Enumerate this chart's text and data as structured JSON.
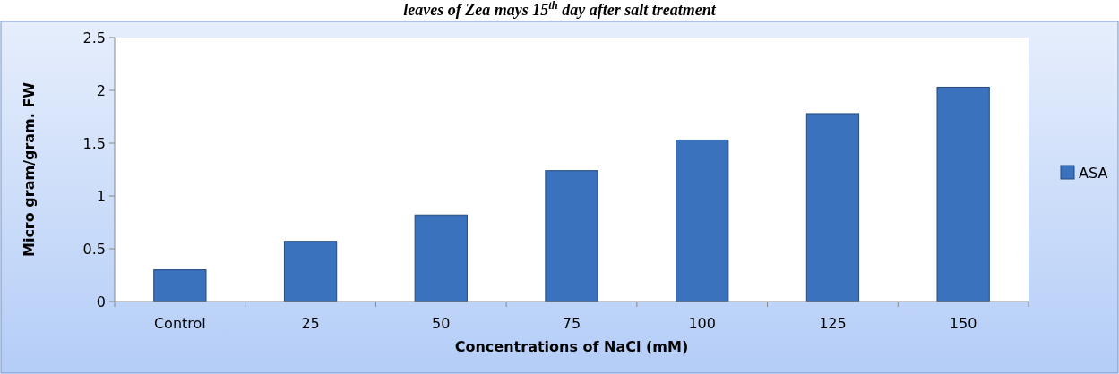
{
  "chart_data": {
    "type": "bar",
    "title": "leaves of Zea mays 15$^{th}$ day after salt treatment",
    "xlabel": "Concentrations of NaCl (mM)",
    "ylabel": "Micro gram/gram. FW",
    "categories": [
      "Control",
      "25",
      "50",
      "75",
      "100",
      "125",
      "150"
    ],
    "series": [
      {
        "name": "ASA",
        "color": "#3a72bd",
        "values": [
          0.3,
          0.57,
          0.82,
          1.24,
          1.53,
          1.78,
          2.03
        ]
      }
    ],
    "ylim": [
      0,
      2.5
    ],
    "yticks": [
      0,
      0.5,
      1,
      1.5,
      2,
      2.5
    ],
    "grid": false,
    "legend": "right"
  }
}
